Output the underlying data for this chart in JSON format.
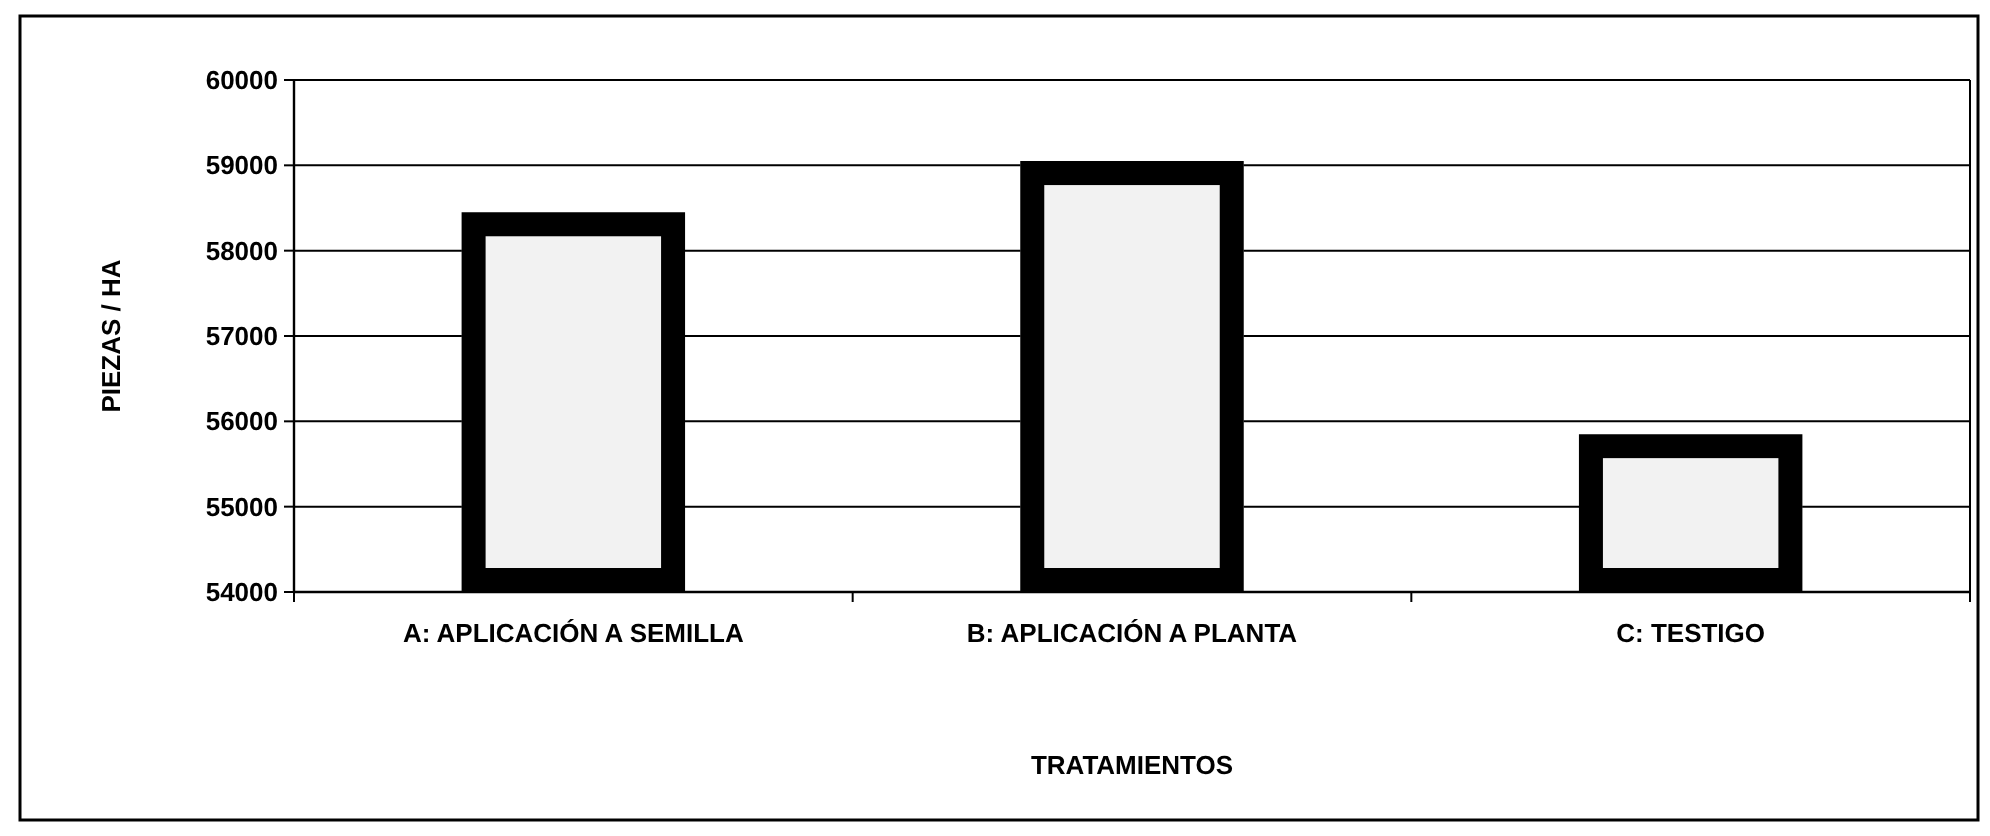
{
  "chart_data": {
    "type": "bar",
    "xlabel": "TRATAMIENTOS",
    "ylabel": "PIEZAS / HA",
    "categories": [
      "A: APLICACIÓN A SEMILLA",
      "B: APLICACIÓN A PLANTA",
      "C: TESTIGO"
    ],
    "values": [
      58450,
      59050,
      55850
    ],
    "color": "#f2f2f2",
    "ylim": [
      54000,
      60000
    ],
    "yticks": [
      54000,
      55000,
      56000,
      57000,
      58000,
      59000,
      60000
    ],
    "grid": "y"
  }
}
